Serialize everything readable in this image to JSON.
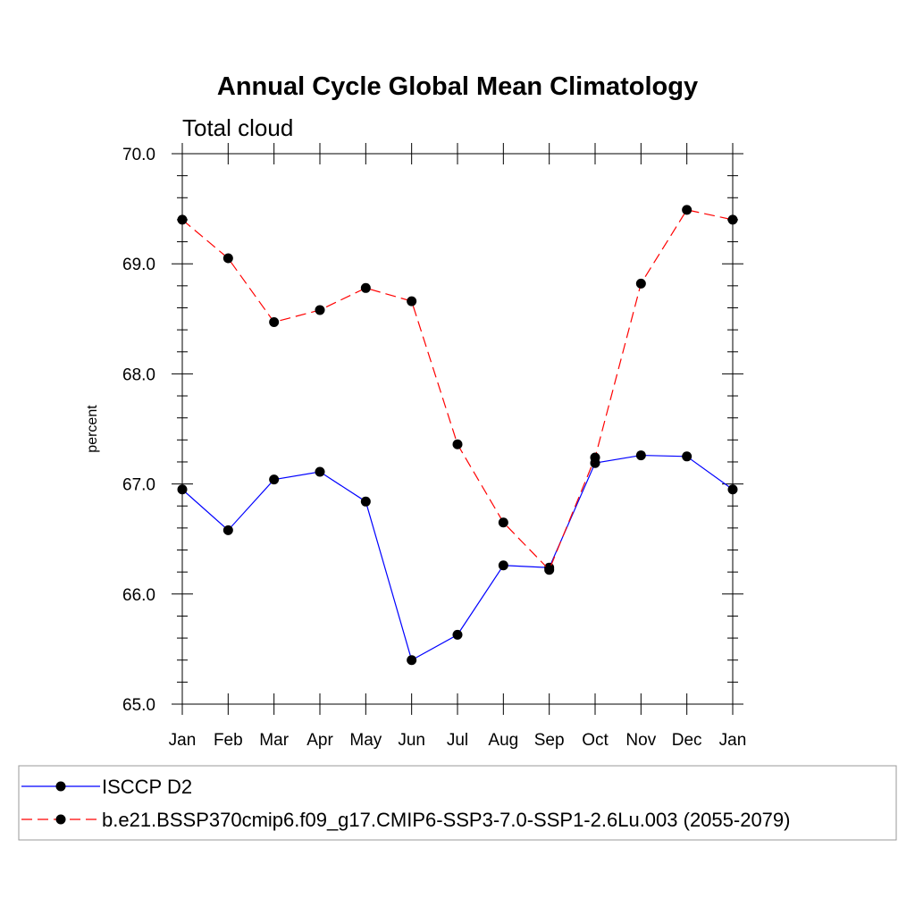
{
  "chart_data": {
    "type": "line",
    "title": "Annual Cycle Global Mean Climatology",
    "subtitle": "Total cloud",
    "ylabel": "percent",
    "xlabel": "",
    "ylim": [
      65.0,
      70.0
    ],
    "y_major_ticks": [
      65.0,
      66.0,
      67.0,
      68.0,
      69.0,
      70.0
    ],
    "y_tick_labels": [
      "65.0",
      "66.0",
      "67.0",
      "68.0",
      "69.0",
      "70.0"
    ],
    "y_minor_step": 0.2,
    "categories": [
      "Jan",
      "Feb",
      "Mar",
      "Apr",
      "May",
      "Jun",
      "Jul",
      "Aug",
      "Sep",
      "Oct",
      "Nov",
      "Dec",
      "Jan"
    ],
    "series": [
      {
        "name": "ISCCP D2",
        "color": "#0000ff",
        "dash": "solid",
        "values": [
          66.95,
          66.58,
          67.04,
          67.11,
          66.84,
          65.4,
          65.63,
          66.26,
          66.24,
          67.19,
          67.26,
          67.25,
          66.95
        ]
      },
      {
        "name": "b.e21.BSSP370cmip6.f09_g17.CMIP6-SSP3-7.0-SSP1-2.6Lu.003 (2055-2079)",
        "color": "#ff0000",
        "dash": "dashed",
        "values": [
          69.4,
          69.05,
          68.47,
          68.58,
          68.78,
          68.66,
          67.36,
          66.65,
          66.22,
          67.24,
          68.82,
          69.49,
          69.4
        ]
      }
    ],
    "legend_position": "bottom"
  }
}
